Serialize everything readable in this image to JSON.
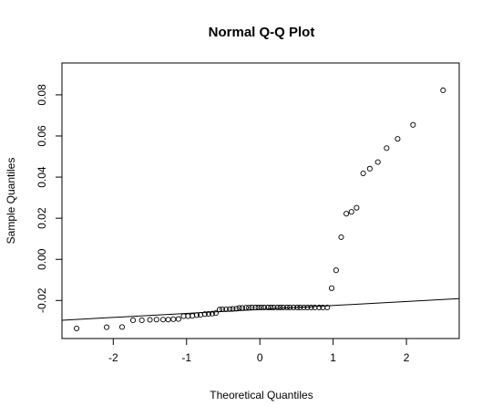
{
  "chart_data": {
    "type": "scatter",
    "title": "Normal Q-Q Plot",
    "xlabel": "Theoretical Quantiles",
    "ylabel": "Sample Quantiles",
    "xlim": [
      -2.7,
      2.72
    ],
    "ylim": [
      -0.0385,
      0.0955
    ],
    "x_ticks": [
      -2,
      -1,
      0,
      1,
      2
    ],
    "x_tick_labels": [
      "-2",
      "-1",
      "0",
      "1",
      "2"
    ],
    "y_ticks": [
      -0.02,
      0.0,
      0.02,
      0.04,
      0.06,
      0.08
    ],
    "y_tick_labels": [
      "-0.02",
      "0.00",
      "0.02",
      "0.04",
      "0.06",
      "0.08"
    ],
    "grid": false,
    "reference_line": {
      "x": [
        -2.7,
        2.72
      ],
      "y": [
        -0.0296,
        -0.0191
      ]
    },
    "series": [
      {
        "points": [
          [
            -2.5,
            -0.0336
          ],
          [
            -2.09,
            -0.033
          ],
          [
            -1.88,
            -0.0329
          ],
          [
            -1.73,
            -0.0296
          ],
          [
            -1.61,
            -0.0296
          ],
          [
            -1.5,
            -0.0294
          ],
          [
            -1.41,
            -0.0293
          ],
          [
            -1.32,
            -0.0293
          ],
          [
            -1.25,
            -0.0293
          ],
          [
            -1.18,
            -0.0291
          ],
          [
            -1.11,
            -0.029
          ],
          [
            -1.04,
            -0.0276
          ],
          [
            -0.98,
            -0.0276
          ],
          [
            -0.92,
            -0.0275
          ],
          [
            -0.86,
            -0.0271
          ],
          [
            -0.81,
            -0.027
          ],
          [
            -0.75,
            -0.0266
          ],
          [
            -0.7,
            -0.0265
          ],
          [
            -0.65,
            -0.0264
          ],
          [
            -0.6,
            -0.0261
          ],
          [
            -0.55,
            -0.0244
          ],
          [
            -0.51,
            -0.0243
          ],
          [
            -0.46,
            -0.0243
          ],
          [
            -0.41,
            -0.0242
          ],
          [
            -0.37,
            -0.0241
          ],
          [
            -0.32,
            -0.024
          ],
          [
            -0.28,
            -0.0236
          ],
          [
            -0.24,
            -0.0236
          ],
          [
            -0.19,
            -0.0235
          ],
          [
            -0.15,
            -0.0235
          ],
          [
            -0.11,
            -0.0234
          ],
          [
            -0.06,
            -0.0234
          ],
          [
            -0.02,
            -0.0234
          ],
          [
            0.02,
            -0.0234
          ],
          [
            0.06,
            -0.0234
          ],
          [
            0.11,
            -0.0234
          ],
          [
            0.15,
            -0.0234
          ],
          [
            0.19,
            -0.0234
          ],
          [
            0.24,
            -0.0234
          ],
          [
            0.28,
            -0.0234
          ],
          [
            0.32,
            -0.0234
          ],
          [
            0.37,
            -0.0234
          ],
          [
            0.41,
            -0.0234
          ],
          [
            0.46,
            -0.0234
          ],
          [
            0.51,
            -0.0234
          ],
          [
            0.55,
            -0.0234
          ],
          [
            0.6,
            -0.0234
          ],
          [
            0.65,
            -0.0234
          ],
          [
            0.7,
            -0.0234
          ],
          [
            0.75,
            -0.0234
          ],
          [
            0.81,
            -0.0234
          ],
          [
            0.86,
            -0.0234
          ],
          [
            0.92,
            -0.0234
          ],
          [
            0.98,
            -0.014
          ],
          [
            1.04,
            -0.0053
          ],
          [
            1.11,
            0.0108
          ],
          [
            1.18,
            0.0222
          ],
          [
            1.25,
            0.0231
          ],
          [
            1.32,
            0.0251
          ],
          [
            1.41,
            0.0418
          ],
          [
            1.5,
            0.0441
          ],
          [
            1.61,
            0.0473
          ],
          [
            1.73,
            0.0541
          ],
          [
            1.88,
            0.0586
          ],
          [
            2.09,
            0.0654
          ],
          [
            2.5,
            0.0822
          ]
        ]
      }
    ]
  }
}
